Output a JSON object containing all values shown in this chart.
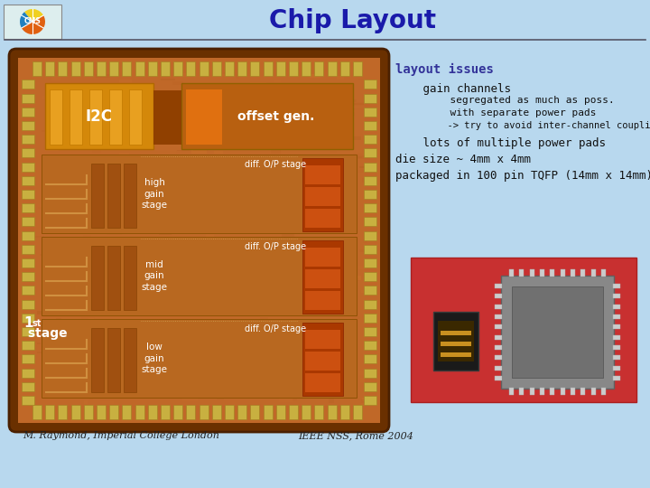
{
  "title": "Chip Layout",
  "title_color": "#1a1aaa",
  "title_fontsize": 20,
  "bg_color": "#b8d8ee",
  "layout_issues_title": "layout issues",
  "layout_issues_color": "#333399",
  "bullet1_title": "   gain channels",
  "sub1": "      segregated as much as poss.",
  "sub2": "      with separate power pads",
  "sub3": "      -> try to avoid inter-channel coupling",
  "bullet2": "   lots of multiple power pads",
  "bullet3": "die size ~ 4mm x 4mm",
  "bullet4": "packaged in 100 pin TQFP (14mm x 14mm)",
  "label_i2c": "I2C",
  "label_offset": "offset gen.",
  "label_diff1": "diff. O/P stage",
  "label_diff2": "diff. O/P stage",
  "label_diff3": "diff. O/P stage",
  "label_high": "high\ngain\nstage",
  "label_mid": "mid\ngain\nstage",
  "label_low": "low\ngain\nstage",
  "footer_left": "M. Raymond, Imperial College London",
  "footer_right": "IEEE NSS, Rome 2004",
  "text_white": "#ffffff",
  "text_black": "#111111",
  "text_dark": "#222222",
  "chip_outer": "#8B4513",
  "chip_bg": "#c8722a",
  "chip_inner": "#b86020",
  "pad_color": "#c8b040",
  "i2c_color": "#d4880a",
  "offset_color": "#c87020",
  "stage_color": "#b06818",
  "pkg_bg": "#cc3030",
  "tqfp_body": "#888888",
  "tqfp_pin": "#cccccc",
  "die_color": "#3a3a3a",
  "font_mono": "monospace"
}
